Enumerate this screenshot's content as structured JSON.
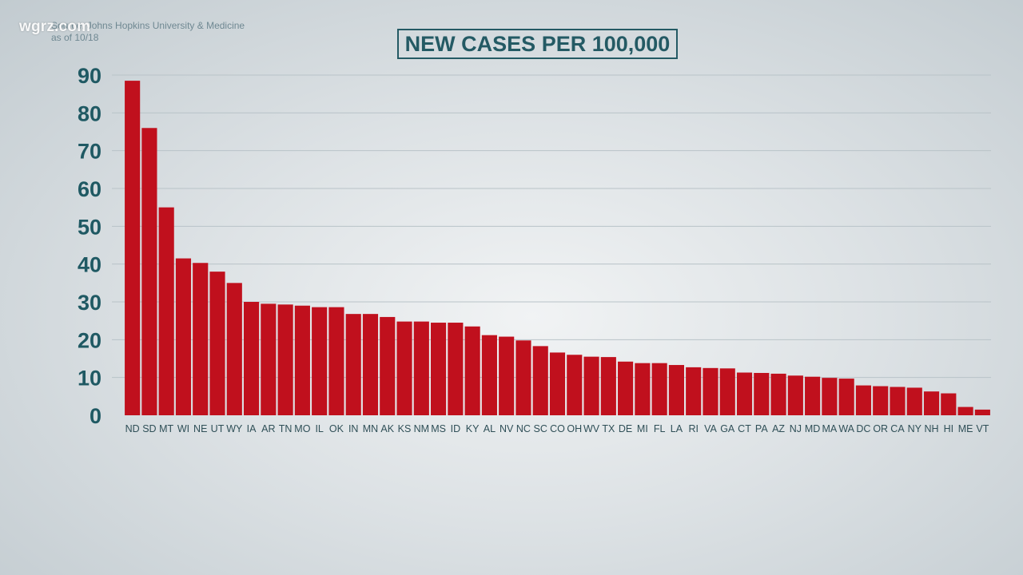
{
  "logo": "wgrz.com",
  "source": {
    "line1": "Source: Johns Hopkins University & Medicine",
    "line2": "as of 10/18"
  },
  "colors": {
    "bar": "#c0101d",
    "axis_text": "#1f5963",
    "gridline": "#b9c3c8"
  },
  "chart_data": {
    "type": "bar",
    "title": "NEW CASES PER 100,000",
    "xlabel": "",
    "ylabel": "",
    "ylim": [
      0,
      90
    ],
    "yticks": [
      0,
      10,
      20,
      30,
      40,
      50,
      60,
      70,
      80,
      90
    ],
    "grid": true,
    "categories": [
      "ND",
      "SD",
      "MT",
      "WI",
      "NE",
      "UT",
      "WY",
      "IA",
      "AR",
      "TN",
      "MO",
      "IL",
      "OK",
      "IN",
      "MN",
      "AK",
      "KS",
      "NM",
      "MS",
      "ID",
      "KY",
      "AL",
      "NV",
      "NC",
      "SC",
      "CO",
      "OH",
      "WV",
      "TX",
      "DE",
      "MI",
      "FL",
      "LA",
      "RI",
      "VA",
      "GA",
      "CT",
      "PA",
      "AZ",
      "NJ",
      "MD",
      "MA",
      "WA",
      "DC",
      "OR",
      "CA",
      "NY",
      "NH",
      "HI",
      "ME",
      "VT"
    ],
    "values": [
      88.5,
      76,
      55,
      41.5,
      40.3,
      38,
      35,
      30,
      29.5,
      29.3,
      29,
      28.6,
      28.6,
      26.8,
      26.8,
      26,
      24.8,
      24.8,
      24.5,
      24.5,
      23.5,
      21.2,
      20.8,
      19.8,
      18.3,
      16.6,
      16,
      15.5,
      15.4,
      14.2,
      13.8,
      13.8,
      13.3,
      12.7,
      12.5,
      12.4,
      11.3,
      11.2,
      11,
      10.5,
      10.2,
      9.9,
      9.7,
      7.9,
      7.7,
      7.5,
      7.3,
      6.3,
      5.8,
      2.2,
      1.5
    ]
  }
}
